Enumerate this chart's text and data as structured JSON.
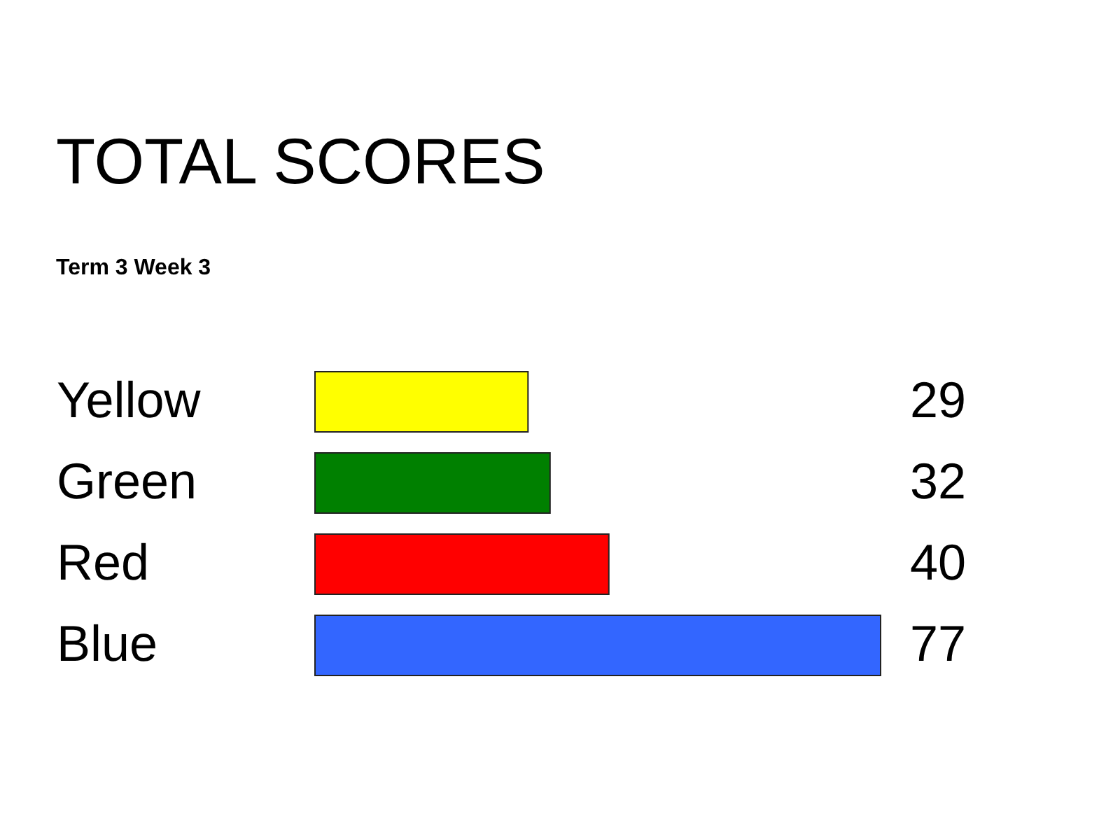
{
  "chart_data": {
    "type": "bar",
    "orientation": "horizontal",
    "title": "TOTAL SCORES",
    "subtitle": "Term 3 Week 3",
    "categories": [
      "Yellow",
      "Green",
      "Red",
      "Blue"
    ],
    "values": [
      29,
      32,
      40,
      77
    ],
    "colors": [
      "#ffff00",
      "#008000",
      "#ff0000",
      "#3366ff"
    ],
    "data_labels": true
  }
}
